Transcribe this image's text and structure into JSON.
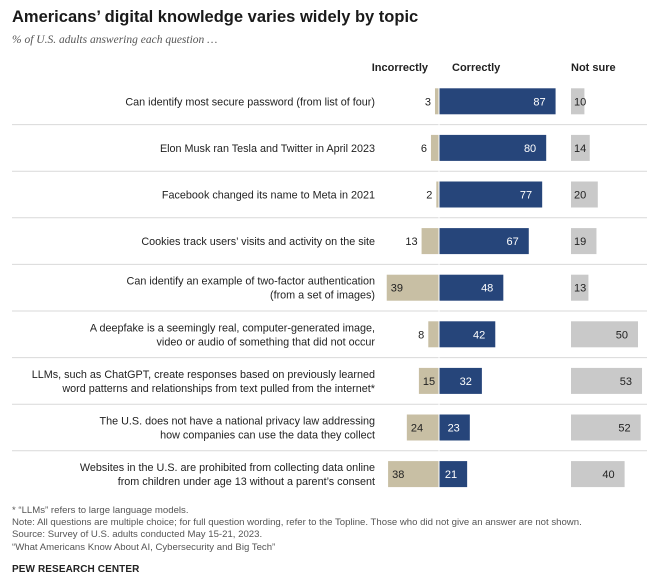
{
  "header": {
    "title": "Americans’ digital knowledge varies widely by topic",
    "subtitle": "% of U.S. adults answering each question …"
  },
  "chart_data": {
    "type": "bar",
    "title": "Americans’ digital knowledge varies widely by topic",
    "subtitle": "% of U.S. adults answering each question …",
    "column_headers": [
      "Incorrectly",
      "Correctly",
      "Not sure"
    ],
    "categories": [
      [
        "Can identify most secure password (from list of four)"
      ],
      [
        "Elon Musk ran Tesla and Twitter in April 2023"
      ],
      [
        "Facebook changed its name to Meta in 2021"
      ],
      [
        "Cookies track users’ visits and activity on the site"
      ],
      [
        "Can identify an example of two-factor authentication",
        "(from a set of images)"
      ],
      [
        "A deepfake is a seemingly real, computer-generated image,",
        "video or audio of something that did not occur"
      ],
      [
        "LLMs, such as ChatGPT, create responses based on previously learned",
        "word patterns and relationships from text pulled from the internet*"
      ],
      [
        "The U.S. does not have a national privacy law addressing",
        "how companies can use the data they collect"
      ],
      [
        "Websites in the U.S. are prohibited from collecting data online",
        "from children under age 13 without a parent’s consent"
      ]
    ],
    "series": [
      {
        "name": "Incorrectly",
        "color": "#c8bfa4",
        "values": [
          3,
          6,
          2,
          13,
          39,
          8,
          15,
          24,
          38
        ]
      },
      {
        "name": "Correctly",
        "color": "#26457a",
        "values": [
          87,
          80,
          77,
          67,
          48,
          42,
          32,
          23,
          21
        ]
      },
      {
        "name": "Not sure",
        "color": "#c9c9c9",
        "values": [
          10,
          14,
          20,
          19,
          13,
          50,
          53,
          52,
          40
        ]
      }
    ],
    "xlabel": "",
    "ylabel": "",
    "xlim": [
      0,
      100
    ]
  },
  "footer": {
    "notes": [
      "* “LLMs” refers to large language models.",
      "Note: All questions are multiple choice; for full question wording, refer to the Topline. Those who did not give an answer are not shown.",
      "Source: Survey of U.S. adults conducted May 15-21, 2023.",
      "“What Americans Know About AI, Cybersecurity and Big Tech”"
    ],
    "source_org": "PEW RESEARCH CENTER"
  },
  "colors": {
    "incorrect": "#c8bfa4",
    "correct": "#26457a",
    "not_sure": "#c9c9c9",
    "divider": "#d9d9d9",
    "text": "#222222"
  }
}
